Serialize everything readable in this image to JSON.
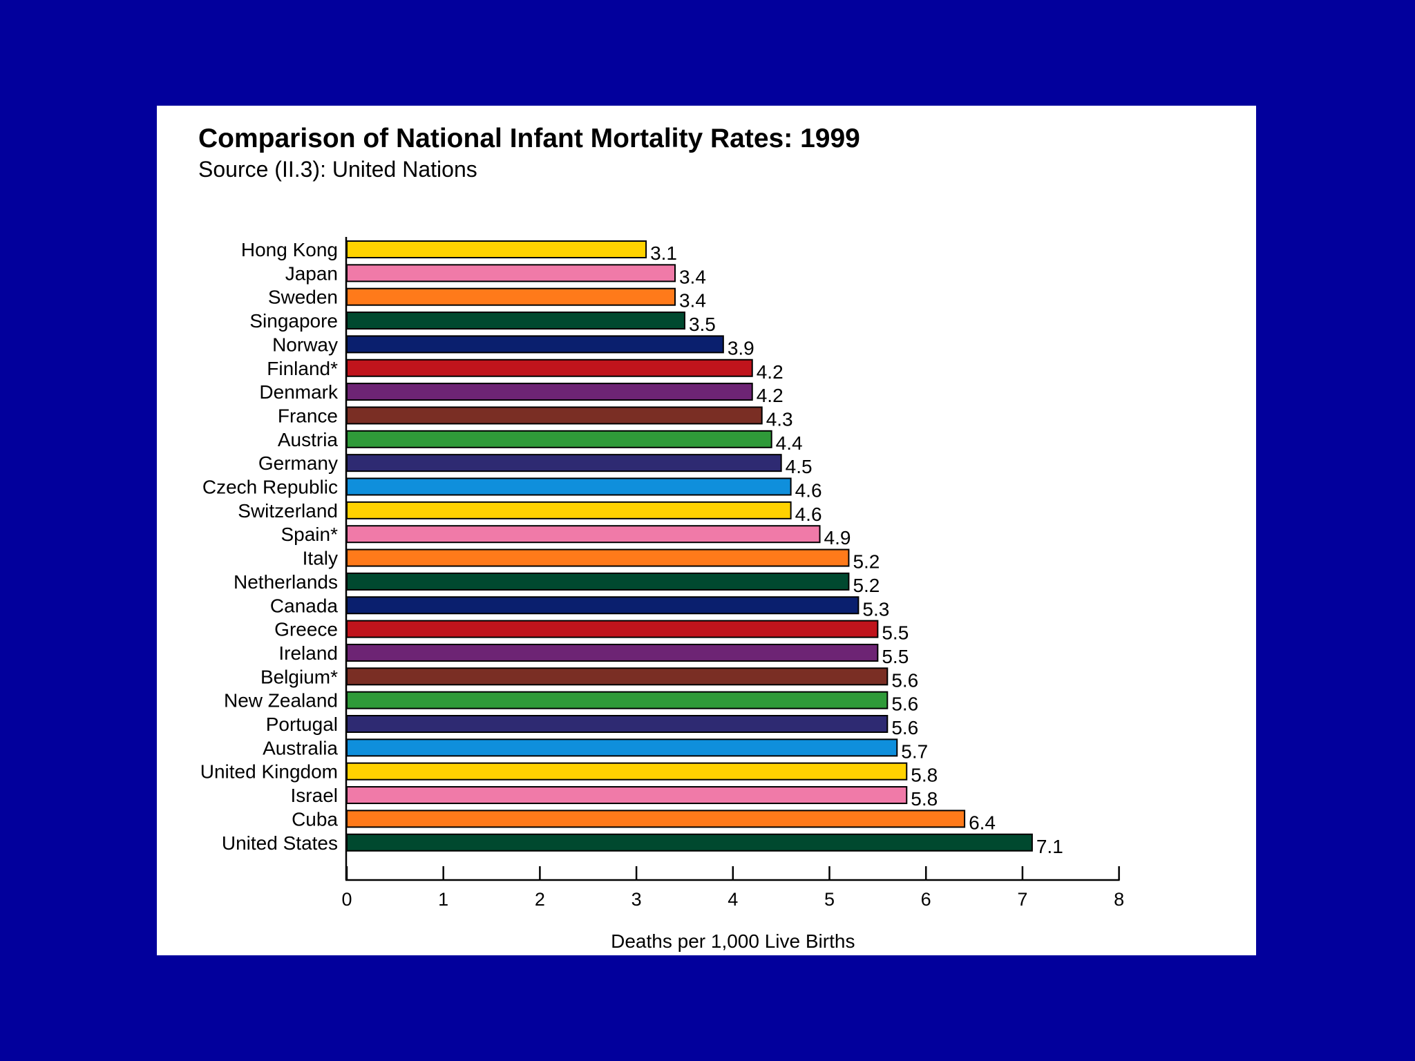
{
  "chart_data": {
    "type": "bar",
    "orientation": "horizontal",
    "title": "Comparison of National Infant Mortality Rates: 1999",
    "subtitle": "Source (II.3): United Nations",
    "xlabel": "Deaths per 1,000 Live Births",
    "ylabel": "",
    "xlim": [
      0,
      8
    ],
    "xticks": [
      "0",
      "1",
      "2",
      "3",
      "4",
      "5",
      "6",
      "7",
      "8"
    ],
    "grid": false,
    "categories": [
      "Hong Kong",
      "Japan",
      "Sweden",
      "Singapore",
      "Norway",
      "Finland*",
      "Denmark",
      "France",
      "Austria",
      "Germany",
      "Czech Republic",
      "Switzerland",
      "Spain*",
      "Italy",
      "Netherlands",
      "Canada",
      "Greece",
      "Ireland",
      "Belgium*",
      "New Zealand",
      "Portugal",
      "Australia",
      "United Kingdom",
      "Israel",
      "Cuba",
      "United States"
    ],
    "values": [
      3.1,
      3.4,
      3.4,
      3.5,
      3.9,
      4.2,
      4.2,
      4.3,
      4.4,
      4.5,
      4.6,
      4.6,
      4.9,
      5.2,
      5.2,
      5.3,
      5.5,
      5.5,
      5.6,
      5.6,
      5.6,
      5.7,
      5.8,
      5.8,
      6.4,
      7.1
    ],
    "value_labels": [
      "3.1",
      "3.4",
      "3.4",
      "3.5",
      "3.9",
      "4.2",
      "4.2",
      "4.3",
      "4.4",
      "4.5",
      "4.6",
      "4.6",
      "4.9",
      "5.2",
      "5.2",
      "5.3",
      "5.5",
      "5.5",
      "5.6",
      "5.6",
      "5.6",
      "5.7",
      "5.8",
      "5.8",
      "6.4",
      "7.1"
    ],
    "bar_colors": [
      "#ffd200",
      "#f07aa8",
      "#ff7a1a",
      "#00492f",
      "#0a1f6e",
      "#c0141c",
      "#6d2474",
      "#7a2e24",
      "#2f9a39",
      "#2e2a72",
      "#0f8fdc",
      "#ffd200",
      "#f07aa8",
      "#ff7a1a",
      "#00492f",
      "#0a1f6e",
      "#c0141c",
      "#6d2474",
      "#7a2e24",
      "#2f9a39",
      "#2e2a72",
      "#0f8fdc",
      "#ffd200",
      "#f07aa8",
      "#ff7a1a",
      "#00492f"
    ]
  },
  "colors": {
    "background": "#02009c",
    "panel": "#ffffff",
    "axis": "#000000"
  }
}
